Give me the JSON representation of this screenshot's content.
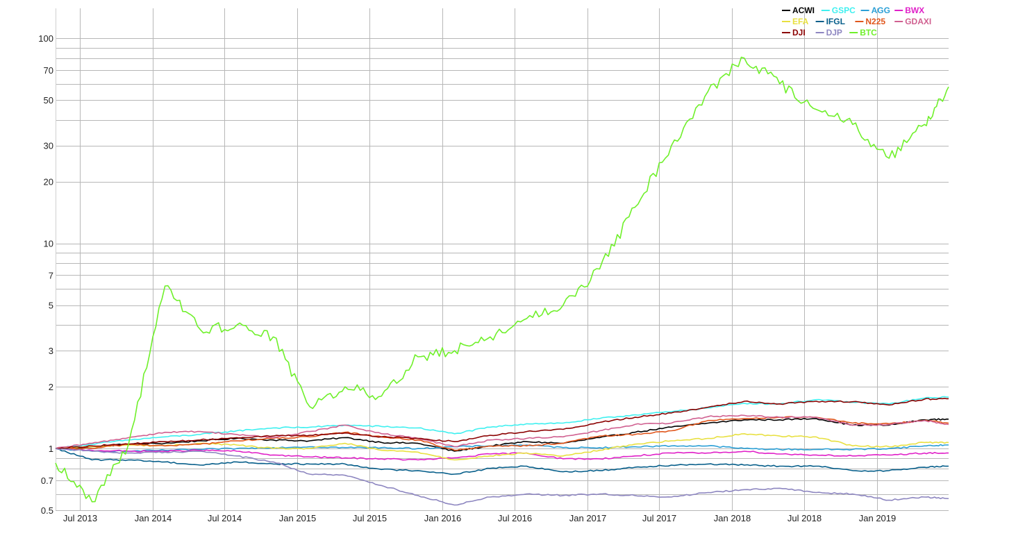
{
  "chart_data": {
    "type": "line",
    "title": "",
    "xlabel": "",
    "ylabel": "",
    "y_scale": "log",
    "ylim": [
      0.5,
      140
    ],
    "xlim": [
      "2013-05-01",
      "2019-07-01"
    ],
    "grid": true,
    "legend_position": "top-right",
    "y_ticks": [
      0.5,
      0.7,
      1,
      2,
      3,
      5,
      7,
      10,
      20,
      30,
      50,
      70,
      100
    ],
    "y_gridlines": [
      0.5,
      0.6,
      0.7,
      0.8,
      0.9,
      1,
      2,
      3,
      4,
      5,
      6,
      7,
      8,
      9,
      10,
      20,
      30,
      40,
      50,
      60,
      70,
      80,
      90,
      100
    ],
    "x_ticks": [
      {
        "label": "Jul 2013",
        "date": "2013-07-01"
      },
      {
        "label": "Jan 2014",
        "date": "2014-01-01"
      },
      {
        "label": "Jul 2014",
        "date": "2014-07-01"
      },
      {
        "label": "Jan 2015",
        "date": "2015-01-01"
      },
      {
        "label": "Jul 2015",
        "date": "2015-07-01"
      },
      {
        "label": "Jan 2016",
        "date": "2016-01-01"
      },
      {
        "label": "Jul 2016",
        "date": "2016-07-01"
      },
      {
        "label": "Jan 2017",
        "date": "2017-01-01"
      },
      {
        "label": "Jul 2017",
        "date": "2017-07-01"
      },
      {
        "label": "Jan 2018",
        "date": "2018-01-01"
      },
      {
        "label": "Jul 2018",
        "date": "2018-07-01"
      },
      {
        "label": "Jan 2019",
        "date": "2019-01-01"
      }
    ],
    "x": [
      "2013-05-01",
      "2013-08-01",
      "2013-11-01",
      "2014-02-01",
      "2014-05-01",
      "2014-08-01",
      "2014-11-01",
      "2015-02-01",
      "2015-05-01",
      "2015-08-01",
      "2015-11-01",
      "2016-02-01",
      "2016-05-01",
      "2016-08-01",
      "2016-11-01",
      "2017-02-01",
      "2017-05-01",
      "2017-08-01",
      "2017-11-01",
      "2018-02-01",
      "2018-05-01",
      "2018-08-01",
      "2018-11-01",
      "2019-02-01",
      "2019-05-01",
      "2019-07-01"
    ],
    "series": [
      {
        "name": "ACWI",
        "color": "#000000",
        "values": [
          1.0,
          1.02,
          1.05,
          1.06,
          1.09,
          1.12,
          1.1,
          1.09,
          1.13,
          1.07,
          1.06,
          0.97,
          1.03,
          1.08,
          1.06,
          1.13,
          1.2,
          1.27,
          1.33,
          1.38,
          1.38,
          1.4,
          1.3,
          1.3,
          1.38,
          1.39
        ]
      },
      {
        "name": "GSPC",
        "color": "#3ff0f0",
        "values": [
          1.0,
          1.05,
          1.1,
          1.14,
          1.17,
          1.22,
          1.26,
          1.27,
          1.3,
          1.28,
          1.26,
          1.18,
          1.27,
          1.32,
          1.33,
          1.4,
          1.46,
          1.51,
          1.58,
          1.66,
          1.65,
          1.73,
          1.68,
          1.65,
          1.76,
          1.78
        ]
      },
      {
        "name": "AGG",
        "color": "#2a9fd6",
        "values": [
          1.0,
          0.97,
          0.97,
          0.98,
          0.99,
          1.0,
          1.01,
          1.02,
          1.01,
          1.01,
          1.0,
          1.02,
          1.03,
          1.04,
          1.01,
          1.01,
          1.02,
          1.03,
          1.03,
          1.0,
          0.99,
          0.99,
          0.99,
          1.0,
          1.03,
          1.04
        ]
      },
      {
        "name": "BWX",
        "color": "#e020c8",
        "values": [
          1.0,
          0.98,
          0.97,
          0.97,
          0.98,
          0.97,
          0.93,
          0.91,
          0.9,
          0.89,
          0.88,
          0.9,
          0.94,
          0.95,
          0.89,
          0.89,
          0.92,
          0.95,
          0.95,
          0.97,
          0.94,
          0.93,
          0.92,
          0.93,
          0.95,
          0.95
        ]
      },
      {
        "name": "EFA",
        "color": "#e8e040",
        "values": [
          1.0,
          1.02,
          1.04,
          1.03,
          1.06,
          1.04,
          1.0,
          1.0,
          1.06,
          0.98,
          0.96,
          0.88,
          0.92,
          0.95,
          0.92,
          0.98,
          1.05,
          1.09,
          1.12,
          1.18,
          1.15,
          1.14,
          1.03,
          1.02,
          1.07,
          1.07
        ]
      },
      {
        "name": "IFGL",
        "color": "#065e8a",
        "values": [
          1.0,
          0.88,
          0.88,
          0.86,
          0.83,
          0.86,
          0.84,
          0.84,
          0.84,
          0.79,
          0.78,
          0.75,
          0.8,
          0.82,
          0.77,
          0.78,
          0.81,
          0.83,
          0.84,
          0.83,
          0.82,
          0.82,
          0.78,
          0.78,
          0.81,
          0.82
        ]
      },
      {
        "name": "N225",
        "color": "#e0561c",
        "values": [
          1.0,
          1.0,
          1.05,
          1.03,
          1.05,
          1.09,
          1.12,
          1.14,
          1.2,
          1.14,
          1.1,
          0.98,
          1.03,
          1.03,
          1.06,
          1.15,
          1.17,
          1.22,
          1.37,
          1.4,
          1.42,
          1.42,
          1.33,
          1.32,
          1.37,
          1.33
        ]
      },
      {
        "name": "GDAXI",
        "color": "#d06090",
        "values": [
          1.0,
          1.06,
          1.13,
          1.2,
          1.21,
          1.17,
          1.13,
          1.21,
          1.3,
          1.18,
          1.12,
          1.02,
          1.1,
          1.12,
          1.14,
          1.22,
          1.31,
          1.33,
          1.43,
          1.45,
          1.42,
          1.42,
          1.3,
          1.31,
          1.37,
          1.31
        ]
      },
      {
        "name": "DJI",
        "color": "#8b0000",
        "values": [
          1.0,
          1.03,
          1.05,
          1.08,
          1.1,
          1.13,
          1.15,
          1.16,
          1.19,
          1.14,
          1.12,
          1.08,
          1.16,
          1.21,
          1.24,
          1.34,
          1.42,
          1.49,
          1.59,
          1.7,
          1.65,
          1.7,
          1.69,
          1.63,
          1.74,
          1.75
        ]
      },
      {
        "name": "DJP",
        "color": "#8d86c0",
        "values": [
          1.0,
          0.97,
          0.95,
          0.96,
          0.97,
          0.92,
          0.86,
          0.75,
          0.74,
          0.66,
          0.59,
          0.53,
          0.58,
          0.6,
          0.59,
          0.6,
          0.59,
          0.58,
          0.61,
          0.63,
          0.64,
          0.61,
          0.6,
          0.56,
          0.58,
          0.57
        ]
      },
      {
        "name": "BTC",
        "color": "#6ff02a",
        "values": [
          0.85,
          0.55,
          1.05,
          6.2,
          3.8,
          4.0,
          3.5,
          1.6,
          2.0,
          1.8,
          2.8,
          3.0,
          3.5,
          4.3,
          5.0,
          7.5,
          15.0,
          30.0,
          55.0,
          80.0,
          60.0,
          45.0,
          38.0,
          26.0,
          38.0,
          58.0
        ]
      }
    ]
  }
}
